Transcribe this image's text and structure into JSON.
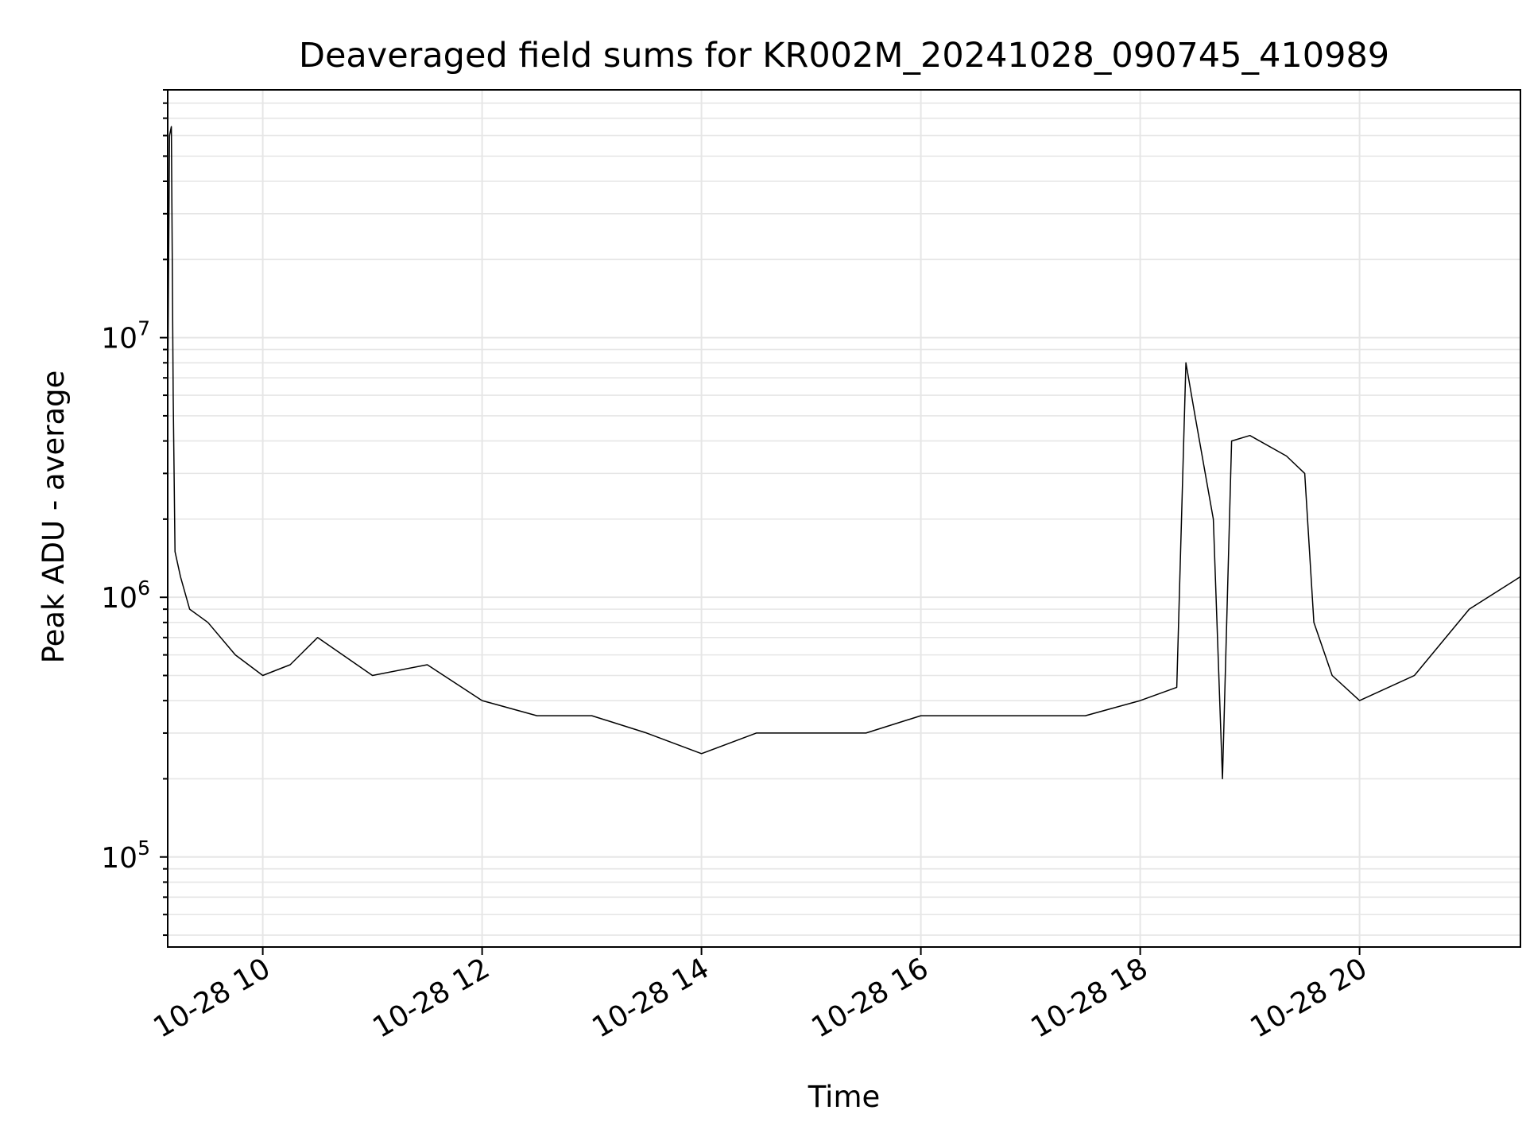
{
  "chart_data": {
    "type": "line",
    "title": "Deaveraged field sums for KR002M_20241028_090745_410989",
    "xlabel": "Time",
    "ylabel": "Peak ADU - average",
    "y_scale": "log",
    "ylim": [
      45000,
      90000000
    ],
    "xlim": [
      "2024-10-28 09:08",
      "2024-10-28 21:28"
    ],
    "grid": true,
    "colors": {
      "line": "#000000",
      "grid": "#e6e6e6",
      "axes": "#000000"
    },
    "x_ticks": [
      {
        "value": "2024-10-28 10:00",
        "label": "10-28 10"
      },
      {
        "value": "2024-10-28 12:00",
        "label": "10-28 12"
      },
      {
        "value": "2024-10-28 14:00",
        "label": "10-28 14"
      },
      {
        "value": "2024-10-28 16:00",
        "label": "10-28 16"
      },
      {
        "value": "2024-10-28 18:00",
        "label": "10-28 18"
      },
      {
        "value": "2024-10-28 20:00",
        "label": "10-28 20"
      }
    ],
    "y_ticks": [
      {
        "value": 100000,
        "base": "10",
        "exp": "5"
      },
      {
        "value": 1000000,
        "base": "10",
        "exp": "6"
      },
      {
        "value": 10000000,
        "base": "10",
        "exp": "7"
      }
    ],
    "series": [
      {
        "x": [
          "2024-10-28 09:08",
          "2024-10-28 09:09",
          "2024-10-28 09:10",
          "2024-10-28 09:11",
          "2024-10-28 09:12",
          "2024-10-28 09:15",
          "2024-10-28 09:20",
          "2024-10-28 09:30",
          "2024-10-28 09:45",
          "2024-10-28 10:00",
          "2024-10-28 10:15",
          "2024-10-28 10:30",
          "2024-10-28 11:00",
          "2024-10-28 11:30",
          "2024-10-28 12:00",
          "2024-10-28 12:30",
          "2024-10-28 13:00",
          "2024-10-28 13:30",
          "2024-10-28 14:00",
          "2024-10-28 14:30",
          "2024-10-28 15:00",
          "2024-10-28 15:30",
          "2024-10-28 16:00",
          "2024-10-28 16:30",
          "2024-10-28 17:00",
          "2024-10-28 17:30",
          "2024-10-28 18:00",
          "2024-10-28 18:20",
          "2024-10-28 18:25",
          "2024-10-28 18:30",
          "2024-10-28 18:40",
          "2024-10-28 18:45",
          "2024-10-28 18:50",
          "2024-10-28 19:00",
          "2024-10-28 19:20",
          "2024-10-28 19:30",
          "2024-10-28 19:35",
          "2024-10-28 19:45",
          "2024-10-28 20:00",
          "2024-10-28 20:30",
          "2024-10-28 21:00",
          "2024-10-28 21:28"
        ],
        "values": [
          6000000,
          60000000,
          65000000,
          6000000,
          1500000,
          1200000,
          900000,
          800000,
          600000,
          500000,
          550000,
          700000,
          500000,
          550000,
          400000,
          350000,
          350000,
          300000,
          250000,
          300000,
          300000,
          300000,
          350000,
          350000,
          350000,
          350000,
          400000,
          450000,
          8000000,
          5000000,
          2000000,
          200000,
          4000000,
          4200000,
          3500000,
          3000000,
          800000,
          500000,
          400000,
          500000,
          900000,
          1200000
        ]
      }
    ]
  }
}
